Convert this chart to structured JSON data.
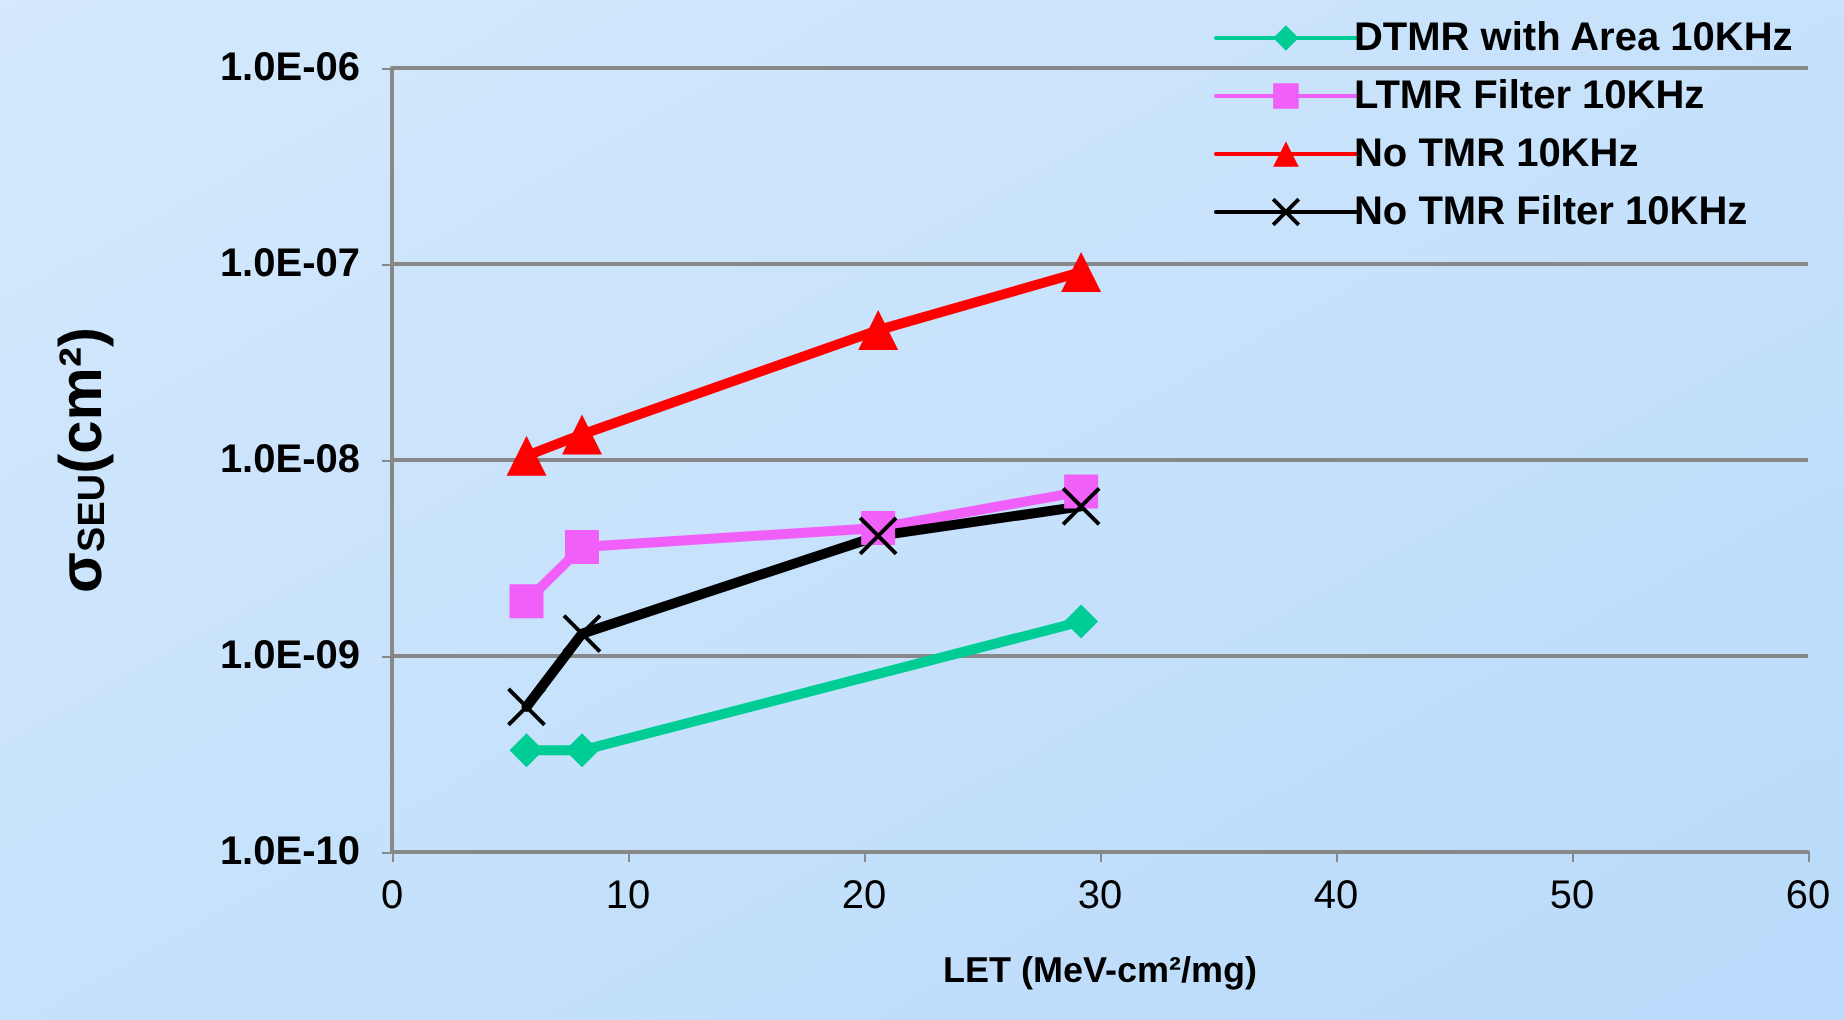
{
  "chart_data": {
    "type": "line",
    "xlabel": "LET (MeV-cm²/mg)",
    "ylabel": "σ$_{SEU}$(cm²)",
    "log": "y",
    "grid": "y",
    "legend": "top right",
    "xlim": [
      0,
      60
    ],
    "xticks": [
      0,
      10,
      20,
      30,
      40,
      50,
      60
    ],
    "ylim": [
      1e-10,
      1e-06
    ],
    "yticks": [
      {
        "value": 1e-10,
        "label": "1.0E-10"
      },
      {
        "value": 1e-09,
        "label": "1.0E-09"
      },
      {
        "value": 1e-08,
        "label": "1.0E-08"
      },
      {
        "value": 1e-07,
        "label": "1.0E-07"
      },
      {
        "value": 1e-06,
        "label": "1.0E-06"
      }
    ],
    "series": [
      {
        "name": "DTMR with Area 10KHz",
        "color": "#00cc96",
        "marker": "diamond",
        "x": [
          5.7,
          8.05,
          29.2
        ],
        "values": [
          3.3e-10,
          3.3e-10,
          1.5e-09
        ]
      },
      {
        "name": "LTMR Filter 10KHz",
        "color": "#f060f8",
        "marker": "square",
        "x": [
          5.7,
          8.05,
          20.6,
          29.2
        ],
        "values": [
          1.9e-09,
          3.6e-09,
          4.5e-09,
          6.9e-09
        ]
      },
      {
        "name": "No TMR 10KHz",
        "color": "#ff0000",
        "marker": "triangle",
        "x": [
          5.7,
          8.05,
          20.6,
          29.2
        ],
        "values": [
          1.05e-08,
          1.35e-08,
          4.6e-08,
          9.1e-08
        ]
      },
      {
        "name": "No TMR Filter 10KHz",
        "color": "#000000",
        "marker": "cross",
        "x": [
          5.7,
          8.05,
          20.6,
          29.2
        ],
        "values": [
          5.5e-10,
          1.3e-09,
          4.1e-09,
          5.8e-09
        ]
      }
    ]
  }
}
